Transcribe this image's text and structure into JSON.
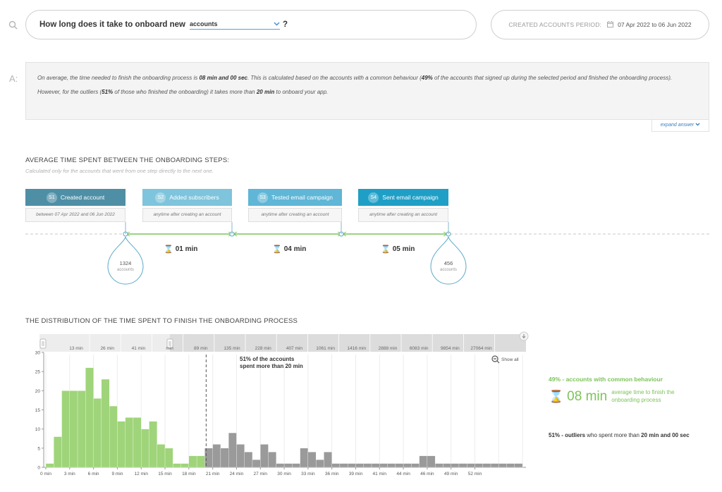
{
  "question": {
    "icon": "search-icon",
    "prefix": "How long does it take to onboard new",
    "selected": "accounts",
    "suffix": "?"
  },
  "period": {
    "label": "CREATED ACCOUNTS PERIOD:",
    "icon": "calendar-icon",
    "value": "07 Apr 2022 to 06 Jun 2022"
  },
  "answer": {
    "letter": "A:",
    "p1_a": "On average, the time needed to finish the onboarding process is ",
    "p1_b": "08 min and 00 sec",
    "p1_c": ". This is calculated based on the accounts with a common behaviour (",
    "p1_d": "49%",
    "p1_e": " of the accounts that signed up during the selected period and finished the onboarding process).",
    "p2_a": "However, for the outliers (",
    "p2_b": "51%",
    "p2_c": " of those who finished the onboarding) it takes more than ",
    "p2_d": "20 min",
    "p2_e": " to onboard your app.",
    "expand": "expand answer"
  },
  "steps_section": {
    "title": "AVERAGE TIME SPENT BETWEEN THE ONBOARDING STEPS:",
    "subtitle": "Calculated only for the accounts that went from one step directly to the next one.",
    "steps": [
      {
        "num": "S1",
        "label": "Created account",
        "desc": "between 07 Apr 2022 and 06 Jun 2022",
        "color": "#4e8fa6"
      },
      {
        "num": "S2",
        "label": "Added subscribers",
        "desc": "anytime after creating an account",
        "color": "#7ec4dc"
      },
      {
        "num": "S3",
        "label": "Tested email campaign",
        "desc": "anytime after creating an account",
        "color": "#5fb6d6"
      },
      {
        "num": "S4",
        "label": "Sent email campaign",
        "desc": "anytime after creating an account",
        "color": "#1f9fc6"
      }
    ],
    "durations": [
      "01 min",
      "04 min",
      "05 min"
    ],
    "start_count": "1324",
    "end_count": "456",
    "count_unit": "accounts"
  },
  "distribution": {
    "title": "THE DISTRIBUTION OF THE TIME SPENT TO FINISH THE ONBOARDING PROCESS",
    "show_all": "Show all",
    "annotation_line1": "51% of the accounts",
    "annotation_line2": "spent more than 20  min",
    "top_axis_labels": [
      "13 min",
      "26 min",
      "41 min",
      "min",
      "89 min",
      "135 min",
      "228 min",
      "407 min",
      "1061 min",
      "1416 min",
      "2888 min",
      "6083 min",
      "9854 min",
      "27064 min"
    ],
    "common_label": "49% - accounts with common behaviour",
    "avg_value": "08 min",
    "avg_desc": "average time to finish the onboarding process",
    "outliers_a": "51% - outliers",
    "outliers_b": " who spent more than ",
    "outliers_c": "20 min and 00 sec"
  },
  "chart_data": {
    "type": "bar",
    "xlabel": "",
    "ylabel": "",
    "ylim": [
      0,
      30
    ],
    "yticks": [
      0,
      5,
      10,
      15,
      20,
      25,
      30
    ],
    "x_tick_labels": [
      "0 min",
      "3 min",
      "6 min",
      "9 min",
      "12 min",
      "15 min",
      "18 min",
      "21 min",
      "24 min",
      "27 min",
      "30 min",
      "33 min",
      "36 min",
      "39 min",
      "41 min",
      "44 min",
      "46 min",
      "49 min",
      "52 min"
    ],
    "bin_width_min": 1,
    "threshold_min": 20,
    "values": [
      1,
      8,
      20,
      20,
      20,
      26,
      18,
      23,
      16,
      12,
      13,
      13,
      10,
      12,
      6,
      5,
      1,
      1,
      3,
      3,
      5,
      6,
      5,
      9,
      6,
      4,
      2,
      6,
      4,
      1,
      1,
      1,
      5,
      4,
      2,
      4,
      1,
      1,
      1,
      1,
      1,
      1,
      1,
      1,
      1,
      1,
      1,
      3,
      3,
      1,
      1,
      1,
      1,
      1,
      1,
      1,
      1,
      1,
      1,
      1
    ],
    "colors": {
      "common": "#9fd47a",
      "outliers": "#9a9a9a"
    },
    "grid": true
  }
}
